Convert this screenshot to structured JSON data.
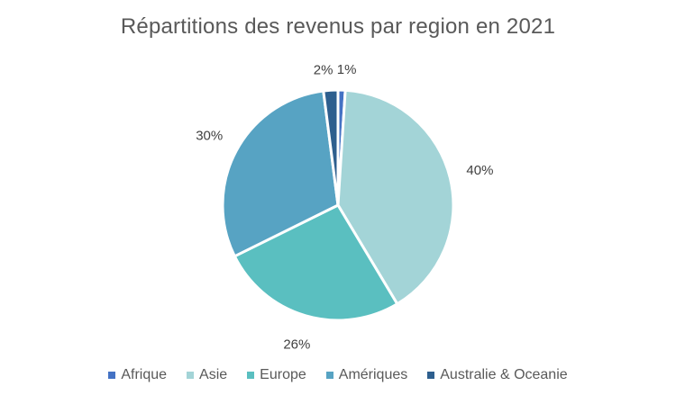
{
  "chart_data": {
    "type": "pie",
    "title": "Répartitions des revenus par region en 2021",
    "categories": [
      "Afrique",
      "Asie",
      "Europe",
      "Amériques",
      "Australie & Oceanie"
    ],
    "values": [
      1,
      40,
      26,
      30,
      2
    ],
    "labels": [
      "1%",
      "40%",
      "26%",
      "30%",
      "2%"
    ],
    "colors": [
      "#4472C4",
      "#A3D4D7",
      "#5ABFC0",
      "#57A3C3",
      "#2E5F8E"
    ],
    "legend_position": "bottom",
    "start_angle_deg": 0,
    "direction": "clockwise"
  }
}
